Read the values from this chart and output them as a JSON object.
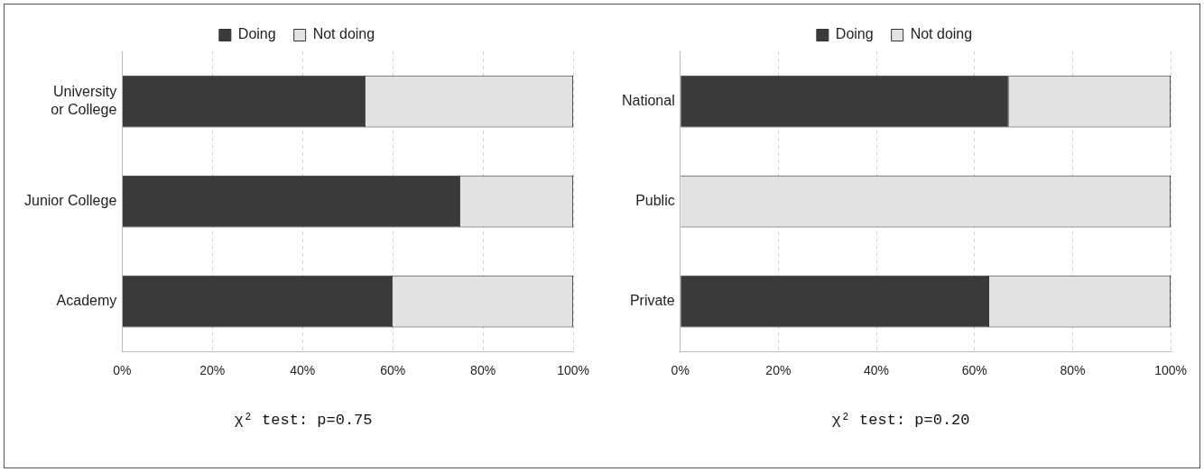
{
  "chart_data": [
    {
      "type": "bar",
      "orientation": "horizontal",
      "stacked": true,
      "categories": [
        "University or College",
        "Junior College",
        "Academy"
      ],
      "series": [
        {
          "name": "Doing",
          "color": "#3a3a3a",
          "values": [
            54,
            75,
            60
          ]
        },
        {
          "name": "Not doing",
          "color": "#e2e2e2",
          "values": [
            46,
            25,
            40
          ]
        }
      ],
      "xlim": [
        0,
        100
      ],
      "xticks": [
        {
          "value": 0,
          "label": "0%"
        },
        {
          "value": 20,
          "label": "20%"
        },
        {
          "value": 40,
          "label": "40%"
        },
        {
          "value": 60,
          "label": "60%"
        },
        {
          "value": 80,
          "label": "80%"
        },
        {
          "value": 100,
          "label": "100%"
        }
      ],
      "grid": "x",
      "legend": "top",
      "annotations": [
        "χ² test: p=0.75"
      ]
    },
    {
      "type": "bar",
      "orientation": "horizontal",
      "stacked": true,
      "categories": [
        "National",
        "Public",
        "Private"
      ],
      "series": [
        {
          "name": "Doing",
          "color": "#3a3a3a",
          "values": [
            67,
            0,
            63
          ]
        },
        {
          "name": "Not doing",
          "color": "#e2e2e2",
          "values": [
            33,
            100,
            37
          ]
        }
      ],
      "xlim": [
        0,
        100
      ],
      "xticks": [
        {
          "value": 0,
          "label": "0%"
        },
        {
          "value": 20,
          "label": "20%"
        },
        {
          "value": 40,
          "label": "40%"
        },
        {
          "value": 60,
          "label": "60%"
        },
        {
          "value": 80,
          "label": "80%"
        },
        {
          "value": 100,
          "label": "100%"
        }
      ],
      "grid": "x",
      "legend": "top",
      "annotations": [
        "χ² test: p=0.20"
      ]
    }
  ]
}
